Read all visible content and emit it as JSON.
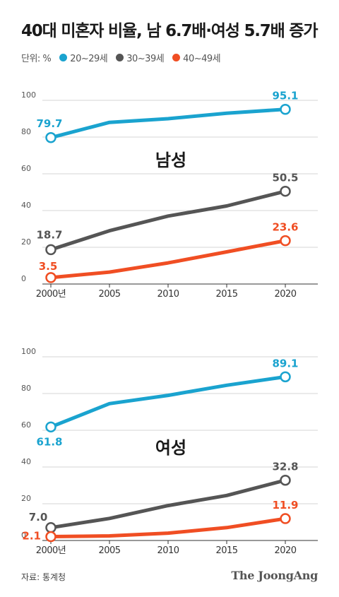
{
  "title": "40대 미혼자 비율, 남 6.7배·여성 5.7배 증가",
  "legend": {
    "unit": "단위: %",
    "items": [
      {
        "label": "20~29세",
        "color": "#1aa3cf"
      },
      {
        "label": "30~39세",
        "color": "#555555"
      },
      {
        "label": "40~49세",
        "color": "#f04e23"
      }
    ]
  },
  "source": "자료: 통계청",
  "logo": "The JoongAng",
  "chart_data": [
    {
      "type": "line",
      "title": "남성",
      "x": [
        "2000년",
        "2005",
        "2010",
        "2015",
        "2020"
      ],
      "ylim": [
        0,
        100
      ],
      "yticks": [
        0,
        20,
        40,
        60,
        80,
        100
      ],
      "grid": true,
      "series": [
        {
          "name": "20~29세",
          "color": "#1aa3cf",
          "values": [
            79.7,
            88.0,
            90.0,
            93.0,
            95.1
          ],
          "labels": [
            "79.7",
            "",
            "",
            "",
            "95.1"
          ]
        },
        {
          "name": "30~39세",
          "color": "#555555",
          "values": [
            18.7,
            29.0,
            37.0,
            42.5,
            50.5
          ],
          "labels": [
            "18.7",
            "",
            "",
            "",
            "50.5"
          ]
        },
        {
          "name": "40~49세",
          "color": "#f04e23",
          "values": [
            3.5,
            6.5,
            11.5,
            17.5,
            23.6
          ],
          "labels": [
            "3.5",
            "",
            "",
            "",
            "23.6"
          ]
        }
      ]
    },
    {
      "type": "line",
      "title": "여성",
      "x": [
        "2000년",
        "2005",
        "2010",
        "2015",
        "2020"
      ],
      "ylim": [
        0,
        100
      ],
      "yticks": [
        0,
        20,
        40,
        60,
        80,
        100
      ],
      "grid": true,
      "series": [
        {
          "name": "20~29세",
          "color": "#1aa3cf",
          "values": [
            61.8,
            74.5,
            79.0,
            84.5,
            89.1
          ],
          "labels": [
            "61.8",
            "",
            "",
            "",
            "89.1"
          ]
        },
        {
          "name": "30~39세",
          "color": "#555555",
          "values": [
            7.0,
            12.0,
            19.0,
            24.5,
            32.8
          ],
          "labels": [
            "7.0",
            "",
            "",
            "",
            "32.8"
          ]
        },
        {
          "name": "40~49세",
          "color": "#f04e23",
          "values": [
            2.1,
            2.5,
            4.0,
            7.0,
            11.9
          ],
          "labels": [
            "2.1",
            "",
            "",
            "",
            "11.9"
          ]
        }
      ]
    }
  ]
}
